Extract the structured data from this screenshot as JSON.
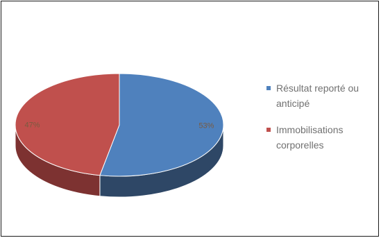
{
  "chart_data": {
    "type": "pie",
    "style": "3d",
    "series": [
      {
        "slices": [
          {
            "label": "Résultat reporté ou anticipé",
            "value": 53,
            "display": "53%",
            "color": "#4f81bd",
            "side_color": "#2e4766"
          },
          {
            "label": "Immobilisations corporelles",
            "value": 47,
            "display": "47%",
            "color": "#c0504d",
            "side_color": "#7d3231"
          }
        ]
      }
    ],
    "legend_position": "right",
    "title": ""
  }
}
